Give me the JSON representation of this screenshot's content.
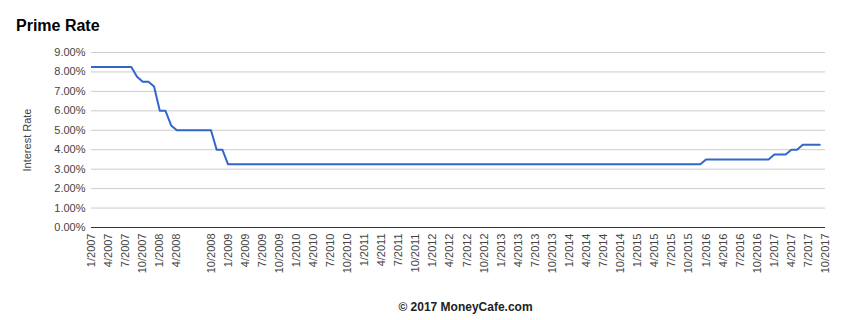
{
  "chart_data": {
    "type": "line",
    "title": "Prime Rate",
    "y_label": "Interest Rate",
    "caption": "© 2017 MoneyCafe.com",
    "color": "#3366cc",
    "grid": true,
    "ylim": [
      0,
      9
    ],
    "yticks": [
      {
        "value": 0,
        "label": "0.00%"
      },
      {
        "value": 1,
        "label": "1.00%"
      },
      {
        "value": 2,
        "label": "2.00%"
      },
      {
        "value": 3,
        "label": "3.00%"
      },
      {
        "value": 4,
        "label": "4.00%"
      },
      {
        "value": 5,
        "label": "5.00%"
      },
      {
        "value": 6,
        "label": "6.00%"
      },
      {
        "value": 7,
        "label": "7.00%"
      },
      {
        "value": 8,
        "label": "8.00%"
      },
      {
        "value": 9,
        "label": "9.00%"
      }
    ],
    "categories": [
      "1/2007",
      null,
      null,
      "4/2007",
      null,
      null,
      "7/2007",
      null,
      null,
      "10/2007",
      null,
      null,
      "1/2008",
      null,
      null,
      "4/2008",
      null,
      null,
      null,
      null,
      null,
      "10/2008",
      null,
      null,
      "1/2009",
      null,
      null,
      "4/2009",
      null,
      null,
      "7/2009",
      null,
      null,
      "10/2009",
      null,
      null,
      "1/2010",
      null,
      null,
      "4/2010",
      null,
      null,
      "7/2010",
      null,
      null,
      "10/2010",
      null,
      null,
      "1/2011",
      null,
      null,
      "4/2011",
      null,
      null,
      "7/2011",
      null,
      null,
      "10/2011",
      null,
      null,
      "1/2012",
      null,
      null,
      "4/2012",
      null,
      null,
      "7/2012",
      null,
      null,
      "10/2012",
      null,
      null,
      "1/2013",
      null,
      null,
      "4/2013",
      null,
      null,
      "7/2013",
      null,
      null,
      "10/2013",
      null,
      null,
      "1/2014",
      null,
      null,
      "4/2014",
      null,
      null,
      "7/2014",
      null,
      null,
      "10/2014",
      null,
      null,
      "1/2015",
      null,
      null,
      "4/2015",
      null,
      null,
      "7/2015",
      null,
      null,
      "10/2015",
      null,
      null,
      "1/2016",
      null,
      null,
      "4/2016",
      null,
      null,
      "7/2016",
      null,
      null,
      "10/2016",
      null,
      null,
      "1/2017",
      null,
      null,
      "4/2017",
      null,
      null,
      "7/2017",
      null,
      null,
      "10/2017"
    ],
    "values": [
      8.25,
      8.25,
      8.25,
      8.25,
      8.25,
      8.25,
      8.25,
      8.25,
      7.75,
      7.5,
      7.5,
      7.25,
      6.0,
      6.0,
      5.25,
      5.0,
      5.0,
      5.0,
      5.0,
      5.0,
      5.0,
      5.0,
      4.0,
      4.0,
      3.25,
      3.25,
      3.25,
      3.25,
      3.25,
      3.25,
      3.25,
      3.25,
      3.25,
      3.25,
      3.25,
      3.25,
      3.25,
      3.25,
      3.25,
      3.25,
      3.25,
      3.25,
      3.25,
      3.25,
      3.25,
      3.25,
      3.25,
      3.25,
      3.25,
      3.25,
      3.25,
      3.25,
      3.25,
      3.25,
      3.25,
      3.25,
      3.25,
      3.25,
      3.25,
      3.25,
      3.25,
      3.25,
      3.25,
      3.25,
      3.25,
      3.25,
      3.25,
      3.25,
      3.25,
      3.25,
      3.25,
      3.25,
      3.25,
      3.25,
      3.25,
      3.25,
      3.25,
      3.25,
      3.25,
      3.25,
      3.25,
      3.25,
      3.25,
      3.25,
      3.25,
      3.25,
      3.25,
      3.25,
      3.25,
      3.25,
      3.25,
      3.25,
      3.25,
      3.25,
      3.25,
      3.25,
      3.25,
      3.25,
      3.25,
      3.25,
      3.25,
      3.25,
      3.25,
      3.25,
      3.25,
      3.25,
      3.25,
      3.25,
      3.5,
      3.5,
      3.5,
      3.5,
      3.5,
      3.5,
      3.5,
      3.5,
      3.5,
      3.5,
      3.5,
      3.5,
      3.75,
      3.75,
      3.75,
      4.0,
      4.0,
      4.25,
      4.25,
      4.25,
      4.25,
      null
    ]
  }
}
